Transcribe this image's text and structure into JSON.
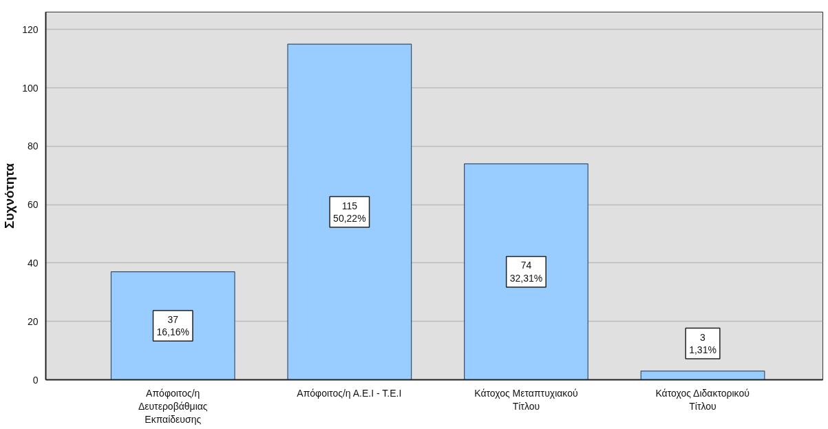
{
  "chart_data": {
    "type": "bar",
    "ylabel": "Συχνότητα",
    "categories": [
      "Απόφοιτος/η Δευτεροβάθμιας Εκπαίδευσης",
      "Απόφοιτος/η Α.Ε.Ι - Τ.Ε.Ι",
      "Κάτοχος Μεταπτυχιακού Τίτλου",
      "Κάτοχος Διδακτορικού Τίτλου"
    ],
    "values": [
      37,
      115,
      74,
      3
    ],
    "color": "#99ccff",
    "value_labels": [
      "37\n16,16%",
      "115\n50,22%",
      "74\n32,31%",
      "3\n1,31%"
    ],
    "ylim": [
      0,
      126
    ],
    "yticks": [
      0,
      20,
      40,
      60,
      80,
      100,
      120
    ],
    "grid": "y"
  }
}
